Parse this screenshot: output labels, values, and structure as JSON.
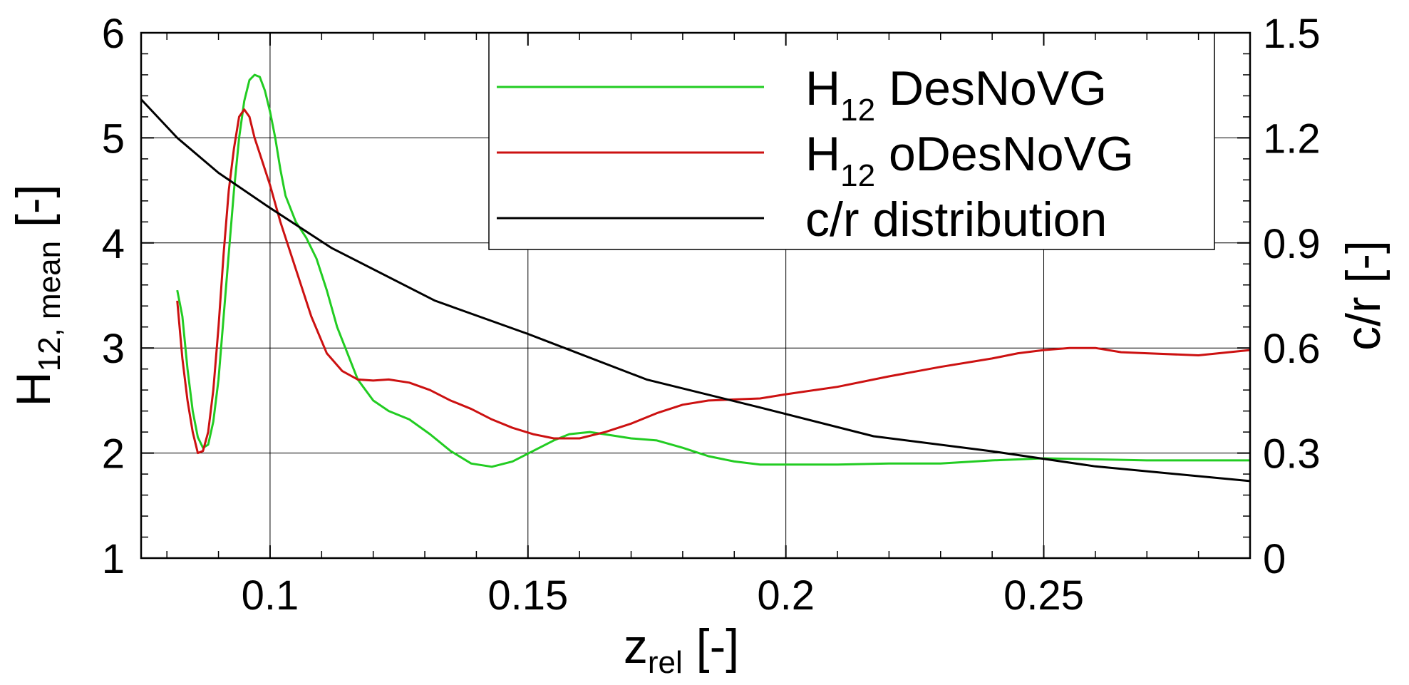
{
  "chart_data": {
    "type": "line",
    "xlabel": {
      "main": "z",
      "sub": "rel",
      "unit": " [-]"
    },
    "ylabel_left": {
      "main": "H",
      "sub": "12, mean",
      "unit": "  [-]"
    },
    "ylabel_right": "c/r [-]",
    "xlim": [
      0.075,
      0.29
    ],
    "ylim_left": [
      1,
      6
    ],
    "ylim_right": [
      0,
      1.5
    ],
    "x_ticks": [
      {
        "value": 0.1,
        "label": "0.1"
      },
      {
        "value": 0.15,
        "label": "0.15"
      },
      {
        "value": 0.2,
        "label": "0.2"
      },
      {
        "value": 0.25,
        "label": "0.25"
      }
    ],
    "y_ticks_left": [
      {
        "value": 1,
        "label": "1"
      },
      {
        "value": 2,
        "label": "2"
      },
      {
        "value": 3,
        "label": "3"
      },
      {
        "value": 4,
        "label": "4"
      },
      {
        "value": 5,
        "label": "5"
      },
      {
        "value": 6,
        "label": "6"
      }
    ],
    "y_ticks_right": [
      {
        "value": 0,
        "label": "0"
      },
      {
        "value": 0.3,
        "label": "0.3"
      },
      {
        "value": 0.6,
        "label": "0.6"
      },
      {
        "value": 0.9,
        "label": "0.9"
      },
      {
        "value": 1.2,
        "label": "1.2"
      },
      {
        "value": 1.5,
        "label": "1.5"
      }
    ],
    "grid": true,
    "legend_position": "top-right",
    "series": [
      {
        "name": "H12 DesNoVG",
        "legend": {
          "main": "H",
          "sub": "12",
          "rest": " DesNoVG"
        },
        "color": "#22cc22",
        "axis": "left",
        "points": [
          [
            0.082,
            3.55
          ],
          [
            0.083,
            3.3
          ],
          [
            0.084,
            2.8
          ],
          [
            0.085,
            2.4
          ],
          [
            0.086,
            2.15
          ],
          [
            0.087,
            2.05
          ],
          [
            0.088,
            2.08
          ],
          [
            0.089,
            2.3
          ],
          [
            0.09,
            2.7
          ],
          [
            0.091,
            3.3
          ],
          [
            0.092,
            3.9
          ],
          [
            0.093,
            4.5
          ],
          [
            0.094,
            5.0
          ],
          [
            0.095,
            5.35
          ],
          [
            0.096,
            5.55
          ],
          [
            0.097,
            5.6
          ],
          [
            0.098,
            5.58
          ],
          [
            0.099,
            5.45
          ],
          [
            0.1,
            5.25
          ],
          [
            0.101,
            5.0
          ],
          [
            0.102,
            4.7
          ],
          [
            0.103,
            4.45
          ],
          [
            0.105,
            4.2
          ],
          [
            0.107,
            4.05
          ],
          [
            0.109,
            3.85
          ],
          [
            0.111,
            3.55
          ],
          [
            0.113,
            3.2
          ],
          [
            0.115,
            2.95
          ],
          [
            0.117,
            2.7
          ],
          [
            0.12,
            2.5
          ],
          [
            0.123,
            2.4
          ],
          [
            0.127,
            2.32
          ],
          [
            0.131,
            2.18
          ],
          [
            0.135,
            2.02
          ],
          [
            0.139,
            1.9
          ],
          [
            0.143,
            1.87
          ],
          [
            0.147,
            1.92
          ],
          [
            0.151,
            2.02
          ],
          [
            0.155,
            2.12
          ],
          [
            0.158,
            2.18
          ],
          [
            0.162,
            2.2
          ],
          [
            0.166,
            2.17
          ],
          [
            0.17,
            2.14
          ],
          [
            0.175,
            2.12
          ],
          [
            0.18,
            2.05
          ],
          [
            0.185,
            1.97
          ],
          [
            0.19,
            1.92
          ],
          [
            0.195,
            1.89
          ],
          [
            0.2,
            1.89
          ],
          [
            0.21,
            1.89
          ],
          [
            0.22,
            1.9
          ],
          [
            0.23,
            1.9
          ],
          [
            0.24,
            1.93
          ],
          [
            0.25,
            1.95
          ],
          [
            0.26,
            1.94
          ],
          [
            0.27,
            1.93
          ],
          [
            0.28,
            1.93
          ],
          [
            0.29,
            1.93
          ]
        ]
      },
      {
        "name": "H12 oDesNoVG",
        "legend": {
          "main": "H",
          "sub": "12",
          "rest": " oDesNoVG"
        },
        "color": "#cc1111",
        "axis": "left",
        "points": [
          [
            0.082,
            3.45
          ],
          [
            0.083,
            2.9
          ],
          [
            0.084,
            2.5
          ],
          [
            0.085,
            2.2
          ],
          [
            0.086,
            2.0
          ],
          [
            0.087,
            2.02
          ],
          [
            0.088,
            2.2
          ],
          [
            0.089,
            2.6
          ],
          [
            0.09,
            3.2
          ],
          [
            0.091,
            3.9
          ],
          [
            0.092,
            4.5
          ],
          [
            0.093,
            4.9
          ],
          [
            0.094,
            5.2
          ],
          [
            0.095,
            5.27
          ],
          [
            0.096,
            5.2
          ],
          [
            0.097,
            5.0
          ],
          [
            0.098,
            4.85
          ],
          [
            0.1,
            4.55
          ],
          [
            0.102,
            4.2
          ],
          [
            0.105,
            3.75
          ],
          [
            0.108,
            3.3
          ],
          [
            0.111,
            2.95
          ],
          [
            0.114,
            2.78
          ],
          [
            0.117,
            2.7
          ],
          [
            0.12,
            2.69
          ],
          [
            0.123,
            2.7
          ],
          [
            0.127,
            2.67
          ],
          [
            0.131,
            2.6
          ],
          [
            0.135,
            2.5
          ],
          [
            0.139,
            2.42
          ],
          [
            0.143,
            2.32
          ],
          [
            0.147,
            2.24
          ],
          [
            0.151,
            2.18
          ],
          [
            0.155,
            2.14
          ],
          [
            0.16,
            2.14
          ],
          [
            0.165,
            2.2
          ],
          [
            0.17,
            2.28
          ],
          [
            0.175,
            2.38
          ],
          [
            0.18,
            2.46
          ],
          [
            0.185,
            2.5
          ],
          [
            0.19,
            2.51
          ],
          [
            0.195,
            2.52
          ],
          [
            0.2,
            2.56
          ],
          [
            0.21,
            2.63
          ],
          [
            0.22,
            2.73
          ],
          [
            0.23,
            2.82
          ],
          [
            0.24,
            2.9
          ],
          [
            0.245,
            2.95
          ],
          [
            0.25,
            2.98
          ],
          [
            0.255,
            3.0
          ],
          [
            0.26,
            3.0
          ],
          [
            0.265,
            2.96
          ],
          [
            0.27,
            2.95
          ],
          [
            0.28,
            2.93
          ],
          [
            0.29,
            2.98
          ]
        ]
      },
      {
        "name": "c/r distribution",
        "legend": {
          "main": "c/r distribution",
          "sub": "",
          "rest": ""
        },
        "color": "#000000",
        "axis": "right",
        "points": [
          [
            0.075,
            1.31
          ],
          [
            0.082,
            1.2
          ],
          [
            0.09,
            1.1
          ],
          [
            0.1,
            1.0
          ],
          [
            0.112,
            0.885
          ],
          [
            0.132,
            0.735
          ],
          [
            0.15,
            0.64
          ],
          [
            0.173,
            0.51
          ],
          [
            0.195,
            0.43
          ],
          [
            0.217,
            0.348
          ],
          [
            0.24,
            0.305
          ],
          [
            0.26,
            0.262
          ],
          [
            0.29,
            0.22
          ]
        ]
      }
    ]
  }
}
